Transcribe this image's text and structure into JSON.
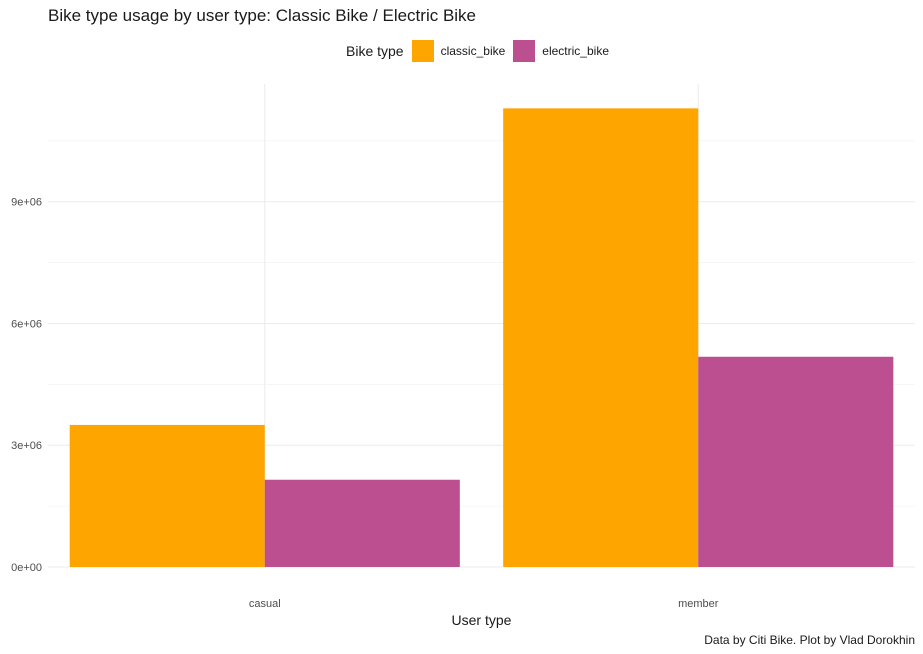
{
  "chart_data": {
    "type": "bar",
    "title": "Bike type usage by user type: Classic Bike / Electric Bike",
    "xlabel": "User type",
    "ylabel": "",
    "caption": "Data by Citi Bike. Plot by Vlad Dorokhin",
    "legend_title": "Bike type",
    "legend_position": "top",
    "grid": true,
    "categories": [
      "casual",
      "member"
    ],
    "series": [
      {
        "name": "classic_bike",
        "color": "#FFA500",
        "values": [
          3500000,
          11300000
        ]
      },
      {
        "name": "electric_bike",
        "color": "#BC4F90",
        "values": [
          2150000,
          5180000
        ]
      }
    ],
    "yticks": [
      0,
      3000000,
      6000000,
      9000000
    ],
    "ytick_labels": [
      "0e+00",
      "3e+06",
      "6e+06",
      "9e+06"
    ],
    "ylim": [
      0,
      11900000
    ]
  }
}
